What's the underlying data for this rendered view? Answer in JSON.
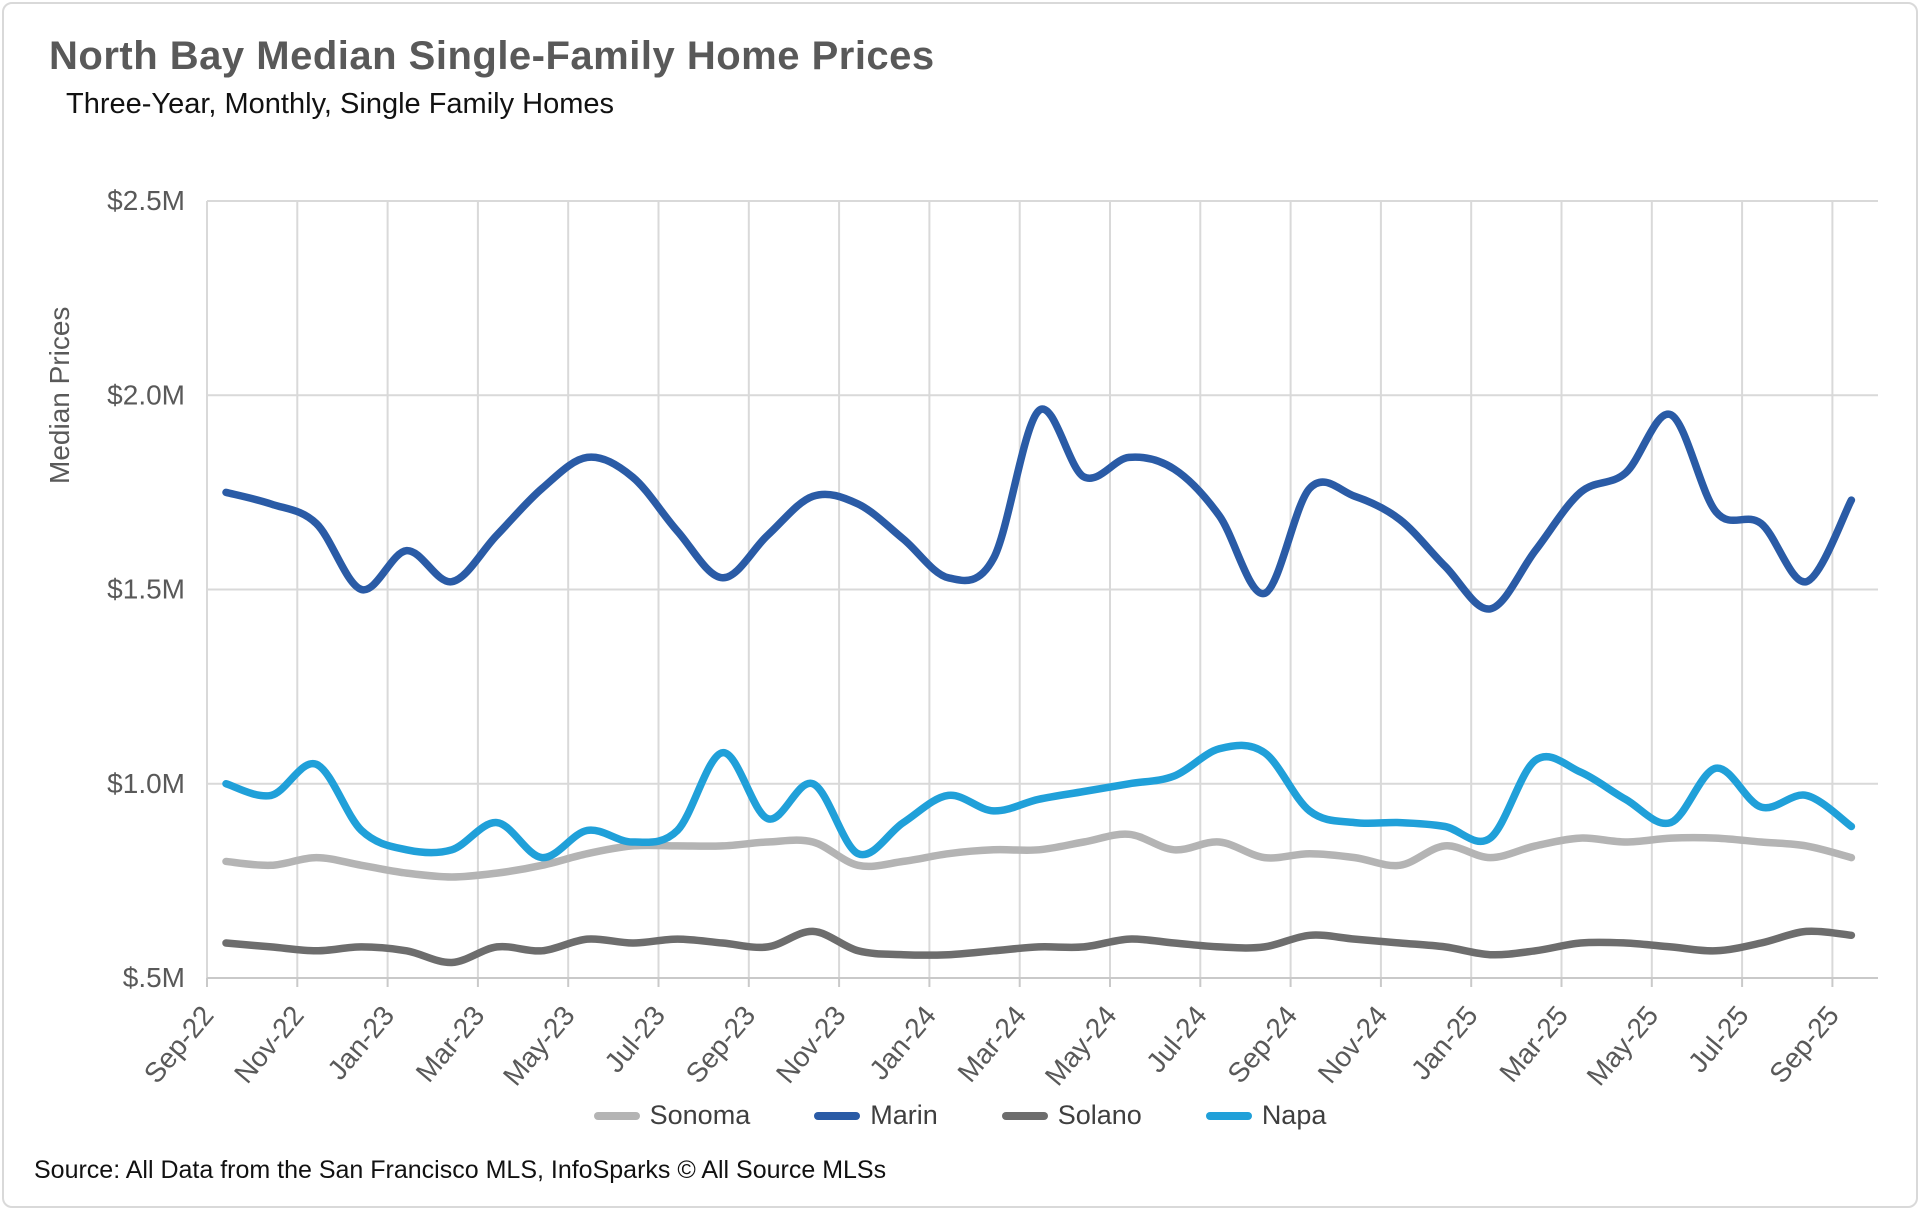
{
  "header": {
    "title": "North Bay Median Single-Family Home Prices",
    "subtitle": "Three-Year, Monthly, Single Family Homes"
  },
  "footer": {
    "source": "Source: All Data from the San Francisco MLS, InfoSparks © All Source MLSs"
  },
  "chart_data": {
    "type": "line",
    "title": "North Bay Median Single-Family Home Prices",
    "subtitle": "Three-Year, Monthly, Single Family Homes",
    "xlabel": "",
    "ylabel": "Median Prices",
    "unit": "millions of dollars",
    "ylim": [
      0.5,
      2.5
    ],
    "grid": true,
    "legend_position": "bottom",
    "ytick_values": [
      2.5,
      2.0,
      1.5,
      1.0,
      0.5
    ],
    "ytick_labels": [
      "$2.5M",
      "$2.0M",
      "$1.5M",
      "$1.0M",
      "$.5M"
    ],
    "x": [
      "Sep-22",
      "Oct-22",
      "Nov-22",
      "Dec-22",
      "Jan-23",
      "Feb-23",
      "Mar-23",
      "Apr-23",
      "May-23",
      "Jun-23",
      "Jul-23",
      "Aug-23",
      "Sep-23",
      "Oct-23",
      "Nov-23",
      "Dec-23",
      "Jan-24",
      "Feb-24",
      "Mar-24",
      "Apr-24",
      "May-24",
      "Jun-24",
      "Jul-24",
      "Aug-24",
      "Sep-24",
      "Oct-24",
      "Nov-24",
      "Dec-24",
      "Jan-25",
      "Feb-25",
      "Mar-25",
      "Apr-25",
      "May-25",
      "Jun-25",
      "Jul-25",
      "Aug-25",
      "Sep-25"
    ],
    "xtick_labels": [
      "Sep-22",
      "Nov-22",
      "Jan-23",
      "Mar-23",
      "May-23",
      "Jul-23",
      "Sep-23",
      "Nov-23",
      "Jan-24",
      "Mar-24",
      "May-24",
      "Jul-24",
      "Sep-24",
      "Nov-24",
      "Jan-25",
      "Mar-25",
      "May-25",
      "Jul-25",
      "Sep-25"
    ],
    "xtick_every": 2,
    "series": [
      {
        "name": "Sonoma",
        "color": "#b4b4b4",
        "values": [
          0.8,
          0.79,
          0.81,
          0.79,
          0.77,
          0.76,
          0.77,
          0.79,
          0.82,
          0.84,
          0.84,
          0.84,
          0.85,
          0.85,
          0.79,
          0.8,
          0.82,
          0.83,
          0.83,
          0.85,
          0.87,
          0.83,
          0.85,
          0.81,
          0.82,
          0.81,
          0.79,
          0.84,
          0.81,
          0.84,
          0.86,
          0.85,
          0.86,
          0.86,
          0.85,
          0.84,
          0.81
        ]
      },
      {
        "name": "Marin",
        "color": "#2a5ba6",
        "values": [
          1.75,
          1.72,
          1.67,
          1.5,
          1.6,
          1.52,
          1.64,
          1.76,
          1.84,
          1.79,
          1.65,
          1.53,
          1.64,
          1.74,
          1.72,
          1.63,
          1.53,
          1.58,
          1.96,
          1.79,
          1.84,
          1.81,
          1.69,
          1.49,
          1.76,
          1.74,
          1.68,
          1.56,
          1.45,
          1.6,
          1.75,
          1.8,
          1.95,
          1.7,
          1.67,
          1.52,
          1.73
        ]
      },
      {
        "name": "Solano",
        "color": "#6d6d6d",
        "values": [
          0.59,
          0.58,
          0.57,
          0.58,
          0.57,
          0.54,
          0.58,
          0.57,
          0.6,
          0.59,
          0.6,
          0.59,
          0.58,
          0.62,
          0.57,
          0.56,
          0.56,
          0.57,
          0.58,
          0.58,
          0.6,
          0.59,
          0.58,
          0.58,
          0.61,
          0.6,
          0.59,
          0.58,
          0.56,
          0.57,
          0.59,
          0.59,
          0.58,
          0.57,
          0.59,
          0.62,
          0.61
        ]
      },
      {
        "name": "Napa",
        "color": "#20a0d9",
        "values": [
          1.0,
          0.97,
          1.05,
          0.88,
          0.83,
          0.83,
          0.9,
          0.81,
          0.88,
          0.85,
          0.88,
          1.08,
          0.91,
          1.0,
          0.82,
          0.9,
          0.97,
          0.93,
          0.96,
          0.98,
          1.0,
          1.02,
          1.09,
          1.08,
          0.93,
          0.9,
          0.9,
          0.89,
          0.86,
          1.06,
          1.03,
          0.96,
          0.9,
          1.04,
          0.94,
          0.97,
          0.89
        ]
      }
    ],
    "colors": {
      "grid": "#d9d9d9",
      "axis": "#c9c9c9",
      "tick_text": "#595959"
    }
  }
}
